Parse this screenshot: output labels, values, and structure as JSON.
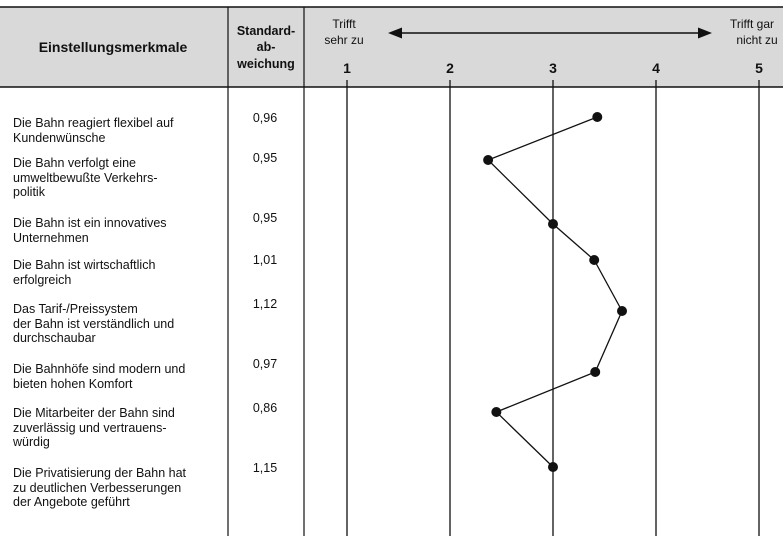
{
  "header": {
    "col1": "Einstellungsmerkmale",
    "col2_lines": [
      "Standard-",
      "ab-",
      "weichung"
    ],
    "left_anchor_lines": [
      "Trifft",
      "sehr zu"
    ],
    "right_anchor_lines": [
      "Trifft gar",
      "nicht zu"
    ]
  },
  "colors": {
    "header_bg": "#d9d9d9",
    "line": "#111111",
    "marker": "#111111"
  },
  "chart_data": {
    "type": "line",
    "orientation": "horizontal-profile",
    "x_scale": {
      "min": 1,
      "max": 5,
      "ticks": [
        "1",
        "2",
        "3",
        "4",
        "5"
      ]
    },
    "grid": true,
    "categories": [
      "Die Bahn reagiert flexibel auf\nKundenwünsche",
      "Die Bahn verfolgt eine\numweltbewußte Verkehrs-\npolitik",
      "Die Bahn ist ein innovatives\nUnternehmen",
      "Die Bahn ist wirtschaftlich\nerfolgreich",
      "Das Tarif-/Preissystem\nder Bahn ist verständlich und\ndurchschaubar",
      "Die Bahnhöfe sind modern und\nbieten hohen Komfort",
      "Die Mitarbeiter der Bahn sind\nzuverlässig und vertrauens-\nwürdig",
      "Die Privatisierung der Bahn hat\nzu deutlichen Verbesserungen\nder Angebote geführt"
    ],
    "std_dev": [
      "0,96",
      "0,95",
      "0,95",
      "1,01",
      "1,12",
      "0,97",
      "0,86",
      "1,15"
    ],
    "values": [
      3.43,
      2.37,
      3.0,
      3.4,
      3.67,
      3.41,
      2.45,
      3.0
    ]
  }
}
